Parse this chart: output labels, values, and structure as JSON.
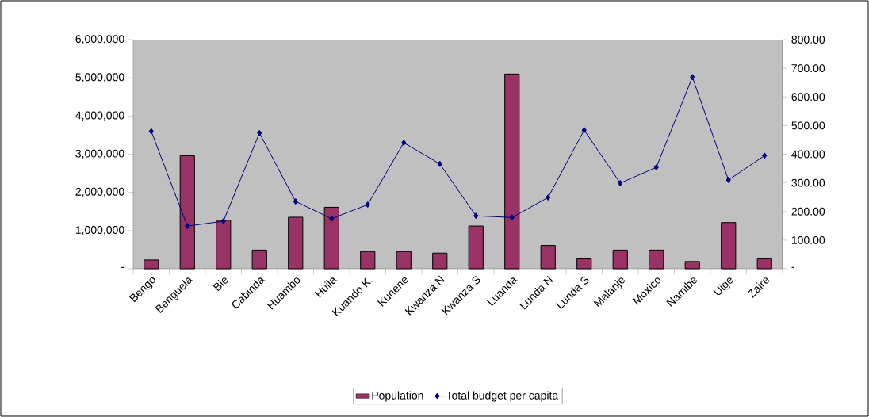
{
  "chart_data": {
    "type": "bar",
    "categories": [
      "Bengo",
      "Benguela",
      "Bie",
      "Cabinda",
      "Huambo",
      "Huila",
      "Kuando K.",
      "Kunene",
      "Kwanza N",
      "Kwanza S",
      "Luanda",
      "Lunda N",
      "Lunda S",
      "Malanje",
      "Moxico",
      "Namibe",
      "Uige",
      "Zaire"
    ],
    "series": [
      {
        "name": "Population",
        "color": "#993366",
        "values": [
          230000,
          2960000,
          1270000,
          490000,
          1350000,
          1610000,
          450000,
          450000,
          410000,
          1120000,
          5100000,
          610000,
          260000,
          490000,
          490000,
          190000,
          1210000,
          260000
        ]
      },
      {
        "name": "Total budget per capita",
        "type": "line",
        "axis": "y2",
        "color": "#000080",
        "values": [
          480,
          149,
          166,
          474,
          235,
          175,
          224,
          440,
          366,
          185,
          179,
          249,
          484,
          299,
          354,
          669,
          310,
          395
        ]
      }
    ],
    "ylim": [
      0,
      6000000
    ],
    "yticks": [
      {
        "value": 0,
        "label": "-"
      },
      {
        "value": 1000000,
        "label": "1,000,000"
      },
      {
        "value": 2000000,
        "label": "2,000,000"
      },
      {
        "value": 3000000,
        "label": "3,000,000"
      },
      {
        "value": 4000000,
        "label": "4,000,000"
      },
      {
        "value": 5000000,
        "label": "5,000,000"
      },
      {
        "value": 6000000,
        "label": "6,000,000"
      }
    ],
    "y2lim": [
      0,
      800
    ],
    "y2ticks": [
      {
        "value": 0,
        "label": "-"
      },
      {
        "value": 100,
        "label": "100.00"
      },
      {
        "value": 200,
        "label": "200.00"
      },
      {
        "value": 300,
        "label": "300.00"
      },
      {
        "value": 400,
        "label": "400.00"
      },
      {
        "value": 500,
        "label": "500.00"
      },
      {
        "value": 600,
        "label": "600.00"
      },
      {
        "value": 700,
        "label": "700.00"
      },
      {
        "value": 800,
        "label": "800.00"
      }
    ],
    "legend": "bottom",
    "marker": "diamond",
    "grid": false
  }
}
